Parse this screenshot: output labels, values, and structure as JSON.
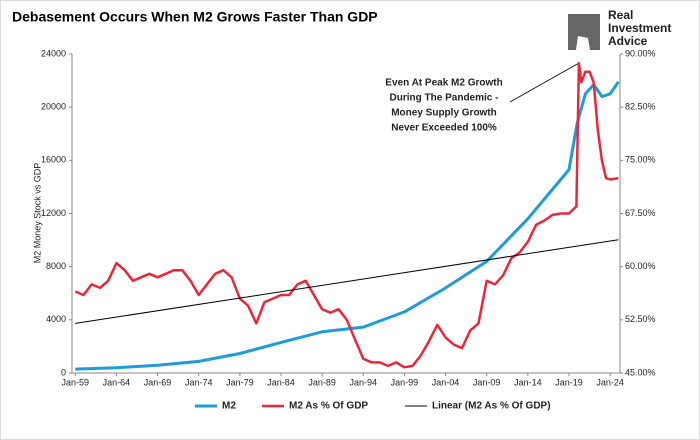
{
  "chart_data": {
    "type": "line",
    "title": "Debasement Occurs When M2 Grows Faster Than GDP",
    "logo": [
      "Real",
      "Investment",
      "Advice"
    ],
    "y_label": "M2 Money Stock vs GDP",
    "annotation": [
      "Even At Peak M2 Growth",
      "During The Pandemic -",
      "Money Supply Growth",
      "Never Exceeded 100%"
    ],
    "xlim": [
      1958.6,
      2025.2
    ],
    "xticks": [
      {
        "value": 1959,
        "label": "Jan-59"
      },
      {
        "value": 1964,
        "label": "Jan-64"
      },
      {
        "value": 1969,
        "label": "Jan-69"
      },
      {
        "value": 1974,
        "label": "Jan-74"
      },
      {
        "value": 1979,
        "label": "Jan-79"
      },
      {
        "value": 1984,
        "label": "Jan-84"
      },
      {
        "value": 1989,
        "label": "Jan-89"
      },
      {
        "value": 1994,
        "label": "Jan-94"
      },
      {
        "value": 1999,
        "label": "Jan-99"
      },
      {
        "value": 2004,
        "label": "Jan-04"
      },
      {
        "value": 2009,
        "label": "Jan-09"
      },
      {
        "value": 2014,
        "label": "Jan-14"
      },
      {
        "value": 2019,
        "label": "Jan-19"
      },
      {
        "value": 2024,
        "label": "Jan-24"
      }
    ],
    "ylim": [
      0,
      24000
    ],
    "yticks": [
      0,
      4000,
      8000,
      12000,
      16000,
      20000,
      24000
    ],
    "y2lim": [
      45,
      90
    ],
    "y2ticks": [
      {
        "value": 45,
        "label": "45.00%"
      },
      {
        "value": 52.5,
        "label": "52.50%"
      },
      {
        "value": 60,
        "label": "60.00%"
      },
      {
        "value": 67.5,
        "label": "67.50%"
      },
      {
        "value": 75,
        "label": "75.00%"
      },
      {
        "value": 82.5,
        "label": "82.50%"
      },
      {
        "value": 90,
        "label": "90.00%"
      }
    ],
    "series": [
      {
        "name": "M2",
        "color": "#1f9bd7",
        "width": 3,
        "x": [
          1959,
          1964,
          1969,
          1974,
          1979,
          1984,
          1989,
          1994,
          1999,
          2004,
          2009,
          2014,
          2019,
          2020,
          2021,
          2022,
          2023,
          2024,
          2025
        ],
        "values": [
          290,
          400,
          580,
          870,
          1470,
          2300,
          3100,
          3450,
          4600,
          6400,
          8400,
          11600,
          15300,
          18800,
          21000,
          21700,
          20800,
          21000,
          21900
        ]
      },
      {
        "name": "M2 As % Of GDP",
        "color": "#e8283a",
        "width": 2.5,
        "axis": "y2",
        "x": [
          1959,
          1960,
          1961,
          1962,
          1963,
          1964,
          1965,
          1966,
          1967,
          1968,
          1969,
          1970,
          1971,
          1972,
          1973,
          1974,
          1975,
          1976,
          1977,
          1978,
          1979,
          1980,
          1981,
          1982,
          1983,
          1984,
          1985,
          1986,
          1987,
          1988,
          1989,
          1990,
          1991,
          1992,
          1993,
          1994,
          1995,
          1996,
          1997,
          1998,
          1999,
          2000,
          2001,
          2002,
          2003,
          2004,
          2005,
          2006,
          2007,
          2008,
          2009,
          2010,
          2011,
          2012,
          2013,
          2014,
          2015,
          2016,
          2017,
          2018,
          2019,
          2019.9,
          2020.2,
          2020.5,
          2021,
          2021.5,
          2022,
          2022.5,
          2023,
          2023.5,
          2024,
          2025
        ],
        "values": [
          56.5,
          56,
          57.5,
          57,
          58,
          60.5,
          59.5,
          58,
          58.5,
          59,
          58.5,
          59,
          59.5,
          59.5,
          58,
          56,
          57.5,
          59,
          59.5,
          58.5,
          55.5,
          54.5,
          52,
          55,
          55.5,
          56,
          56,
          57.5,
          58,
          56,
          54,
          53.5,
          54,
          52.5,
          49.7,
          47,
          46.5,
          46.5,
          46,
          46.5,
          45.8,
          46,
          47.5,
          49.5,
          51.8,
          50,
          49,
          48.5,
          51,
          52,
          58,
          57.5,
          58.8,
          61.2,
          62,
          63.5,
          65.9,
          66.5,
          67.3,
          67.5,
          67.5,
          68.5,
          88.7,
          86,
          87.5,
          87.5,
          86,
          79.3,
          75,
          72.5,
          72.3,
          72.5
        ]
      },
      {
        "name": "Linear (M2 As % Of GDP)",
        "color": "#000000",
        "width": 1,
        "axis": "y2",
        "x": [
          1959,
          2025
        ],
        "values": [
          52,
          63.8
        ]
      }
    ]
  }
}
